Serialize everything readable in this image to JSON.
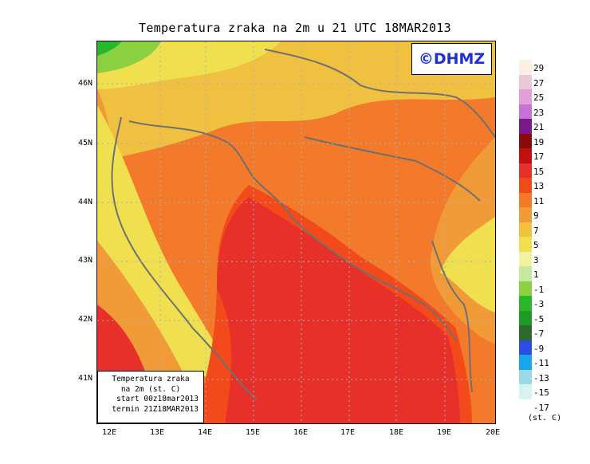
{
  "title": "Temperatura zraka na 2m u 21 UTC 18MAR2013",
  "logo": "©DHMZ",
  "infobox": {
    "line1": "Temperatura zraka",
    "line2": "na 2m (st. C)",
    "line3": "start 00z18mar2013",
    "line4": "termin 21Z18MAR2013"
  },
  "lat_labels": [
    "46N",
    "45N",
    "44N",
    "43N",
    "42N",
    "41N"
  ],
  "lon_labels": [
    "12E",
    "13E",
    "14E",
    "15E",
    "16E",
    "17E",
    "18E",
    "19E",
    "20E"
  ],
  "legend": {
    "units": "(st. C)",
    "labels": [
      "29",
      "27",
      "25",
      "23",
      "21",
      "19",
      "17",
      "15",
      "13",
      "11",
      "9",
      "7",
      "5",
      "3",
      "1",
      "-1",
      "-3",
      "-5",
      "-7",
      "-9",
      "-11",
      "-13",
      "-15",
      "-17"
    ],
    "colors": [
      "#fdf0e2",
      "#e9c8d8",
      "#e3a0d8",
      "#c872d6",
      "#7a1a8a",
      "#8a0a0a",
      "#c01010",
      "#e8302a",
      "#f24a1a",
      "#f27a2a",
      "#f09a38",
      "#f2c040",
      "#f0e050",
      "#f2f2a0",
      "#c8e8a0",
      "#8ad040",
      "#2ab82a",
      "#1f9a22",
      "#2d6a2d",
      "#2a4ee0",
      "#18a6e8",
      "#9ad8e8",
      "#d8f2f2",
      "#ffffff"
    ]
  }
}
